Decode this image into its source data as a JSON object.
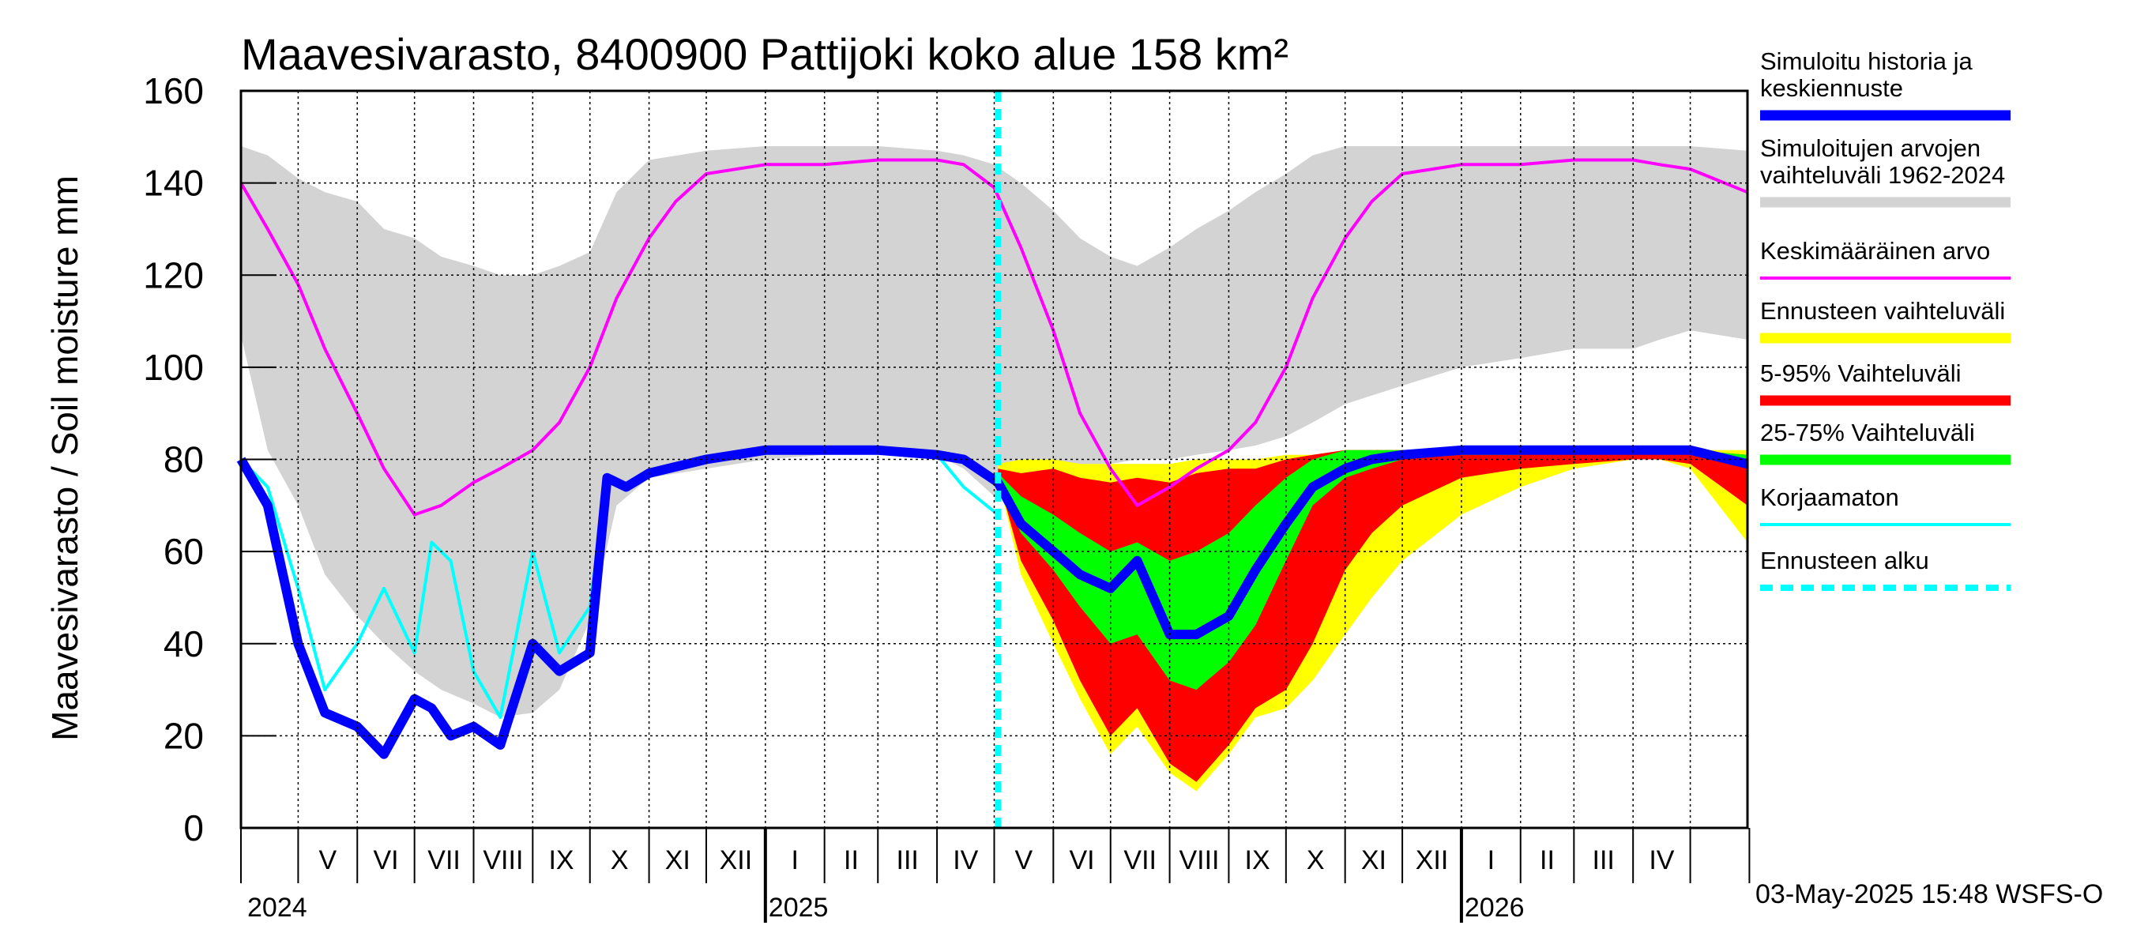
{
  "chart_data": {
    "type": "area",
    "title": "Maavesivarasto, 8400900 Pattijoki koko alue 158 km²",
    "ylabel": "Maavesivarasto / Soil moisture   mm",
    "ylim": [
      0,
      160
    ],
    "yticks": [
      "0",
      "20",
      "40",
      "60",
      "80",
      "100",
      "120",
      "140",
      "160"
    ],
    "grid": true,
    "legend_position": "right",
    "x_start": "2024-04-01",
    "x_end": "2026-05-31",
    "forecast_start": "2025-05-03",
    "months": [
      "V",
      "VI",
      "VII",
      "VIII",
      "IX",
      "X",
      "XI",
      "XII",
      "I",
      "II",
      "III",
      "IV",
      "V",
      "VI",
      "VII",
      "VIII",
      "IX",
      "X",
      "XI",
      "XII",
      "I",
      "II",
      "III",
      "IV"
    ],
    "years": [
      "2024",
      "2025",
      "2026"
    ],
    "timestamp": "03-May-2025 15:48 WSFS-O",
    "legend": [
      {
        "label_lines": [
          "Simuloitu historia ja",
          "keskiennuste"
        ],
        "color": "#0000ff",
        "style": "thick"
      },
      {
        "label_lines": [
          "Simuloitujen arvojen",
          "vaihteluväli 1962-2024"
        ],
        "color": "#d3d3d3",
        "style": "thick"
      },
      {
        "label_lines": [
          "Keskimääräinen arvo"
        ],
        "color": "#ff00ff",
        "style": "thin"
      },
      {
        "label_lines": [
          "Ennusteen vaihteluväli"
        ],
        "color": "#ffff00",
        "style": "thick"
      },
      {
        "label_lines": [
          "5-95% Vaihteluväli"
        ],
        "color": "#ff0000",
        "style": "thick"
      },
      {
        "label_lines": [
          "25-75% Vaihteluväli"
        ],
        "color": "#00ff00",
        "style": "thick"
      },
      {
        "label_lines": [
          "Korjaamaton"
        ],
        "color": "#00ffff",
        "style": "thin"
      },
      {
        "label_lines": [
          "Ennusteen alku"
        ],
        "color": "#00ffff",
        "style": "dashed"
      }
    ],
    "series": [
      {
        "name": "Simuloitujen arvojen vaihteluväli 1962-2024",
        "type": "band",
        "color": "#d3d3d3",
        "x": [
          "2024-04-01",
          "2024-04-15",
          "2024-05-01",
          "2024-05-15",
          "2024-06-01",
          "2024-06-15",
          "2024-07-01",
          "2024-07-15",
          "2024-08-01",
          "2024-08-15",
          "2024-09-01",
          "2024-09-15",
          "2024-10-01",
          "2024-10-15",
          "2024-11-01",
          "2024-12-01",
          "2025-01-01",
          "2025-02-01",
          "2025-03-01",
          "2025-04-01",
          "2025-04-15",
          "2025-05-01",
          "2025-05-15",
          "2025-06-01",
          "2025-06-15",
          "2025-07-01",
          "2025-07-15",
          "2025-08-01",
          "2025-08-15",
          "2025-09-01",
          "2025-09-15",
          "2025-10-01",
          "2025-10-15",
          "2025-11-01",
          "2025-12-01",
          "2026-01-01",
          "2026-02-01",
          "2026-03-01",
          "2026-04-01",
          "2026-04-15",
          "2026-05-01",
          "2026-05-31"
        ],
        "low": [
          107,
          82,
          70,
          55,
          46,
          40,
          34,
          30,
          27,
          24,
          25,
          30,
          45,
          70,
          76,
          78,
          80,
          81,
          81,
          81,
          78,
          72,
          75,
          78,
          79,
          79,
          80,
          80,
          81,
          82,
          83,
          85,
          88,
          92,
          96,
          100,
          102,
          104,
          104,
          106,
          108,
          106
        ],
        "high": [
          148,
          146,
          141,
          138,
          136,
          130,
          128,
          124,
          122,
          120,
          120,
          122,
          125,
          138,
          145,
          147,
          148,
          148,
          148,
          147,
          146,
          144,
          140,
          134,
          128,
          124,
          122,
          126,
          130,
          134,
          138,
          142,
          146,
          148,
          148,
          148,
          148,
          148,
          148,
          148,
          148,
          147
        ]
      },
      {
        "name": "Ennusteen vaihteluväli",
        "type": "band",
        "color": "#ffff00",
        "x": [
          "2025-05-03",
          "2025-05-15",
          "2025-06-01",
          "2025-06-15",
          "2025-07-01",
          "2025-07-15",
          "2025-08-01",
          "2025-08-15",
          "2025-09-01",
          "2025-09-15",
          "2025-10-01",
          "2025-10-15",
          "2025-11-01",
          "2025-11-15",
          "2025-12-01",
          "2026-01-01",
          "2026-02-01",
          "2026-03-01",
          "2026-04-01",
          "2026-04-15",
          "2026-05-01",
          "2026-05-31"
        ],
        "low": [
          76,
          55,
          40,
          28,
          16,
          22,
          12,
          8,
          16,
          24,
          26,
          32,
          42,
          50,
          58,
          68,
          74,
          78,
          80,
          80,
          78,
          62
        ],
        "high": [
          79,
          80,
          80,
          79,
          79,
          79,
          79,
          80,
          80,
          80,
          81,
          81,
          82,
          82,
          82,
          82,
          82,
          82,
          82,
          82,
          82,
          82
        ]
      },
      {
        "name": "5-95% Vaihteluväli",
        "type": "band",
        "color": "#ff0000",
        "x": [
          "2025-05-03",
          "2025-05-15",
          "2025-06-01",
          "2025-06-15",
          "2025-07-01",
          "2025-07-15",
          "2025-08-01",
          "2025-08-15",
          "2025-09-01",
          "2025-09-15",
          "2025-10-01",
          "2025-10-15",
          "2025-11-01",
          "2025-11-15",
          "2025-12-01",
          "2026-01-01",
          "2026-02-01",
          "2026-03-01",
          "2026-04-01",
          "2026-04-15",
          "2026-05-01",
          "2026-05-31"
        ],
        "low": [
          76,
          58,
          45,
          32,
          20,
          26,
          14,
          10,
          18,
          26,
          30,
          40,
          56,
          64,
          70,
          76,
          78,
          79,
          80,
          80,
          79,
          70
        ],
        "high": [
          78,
          77,
          78,
          76,
          75,
          76,
          75,
          77,
          78,
          78,
          80,
          81,
          82,
          82,
          82,
          82,
          82,
          82,
          82,
          82,
          82,
          81
        ]
      },
      {
        "name": "25-75% Vaihteluväli",
        "type": "band",
        "color": "#00ff00",
        "x": [
          "2025-05-03",
          "2025-05-15",
          "2025-06-01",
          "2025-06-15",
          "2025-07-01",
          "2025-07-15",
          "2025-08-01",
          "2025-08-15",
          "2025-09-01",
          "2025-09-15",
          "2025-10-01",
          "2025-10-15",
          "2025-11-01",
          "2025-11-15",
          "2025-12-01",
          "2026-01-01",
          "2026-02-01",
          "2026-03-01",
          "2026-04-01",
          "2026-04-15",
          "2026-05-01",
          "2026-05-31"
        ],
        "low": [
          74,
          64,
          56,
          48,
          40,
          42,
          32,
          30,
          36,
          44,
          58,
          70,
          76,
          78,
          80,
          81,
          81,
          82,
          82,
          82,
          82,
          79
        ],
        "high": [
          77,
          72,
          68,
          64,
          60,
          62,
          58,
          60,
          64,
          70,
          76,
          80,
          82,
          82,
          82,
          82,
          82,
          82,
          82,
          82,
          82,
          81
        ]
      },
      {
        "name": "Keskimääräinen arvo",
        "type": "line",
        "color": "#ff00ff",
        "x": [
          "2024-04-01",
          "2024-04-15",
          "2024-05-01",
          "2024-05-15",
          "2024-06-01",
          "2024-06-15",
          "2024-07-01",
          "2024-07-15",
          "2024-08-01",
          "2024-08-15",
          "2024-09-01",
          "2024-09-15",
          "2024-10-01",
          "2024-10-15",
          "2024-11-01",
          "2024-11-15",
          "2024-12-01",
          "2025-01-01",
          "2025-02-01",
          "2025-03-01",
          "2025-04-01",
          "2025-04-15",
          "2025-05-01",
          "2025-05-15",
          "2025-06-01",
          "2025-06-15",
          "2025-07-01",
          "2025-07-15",
          "2025-08-01",
          "2025-08-15",
          "2025-09-01",
          "2025-09-15",
          "2025-10-01",
          "2025-10-15",
          "2025-11-01",
          "2025-11-15",
          "2025-12-01",
          "2026-01-01",
          "2026-02-01",
          "2026-03-01",
          "2026-04-01",
          "2026-04-15",
          "2026-05-01",
          "2026-05-31"
        ],
        "y": [
          140,
          130,
          118,
          104,
          90,
          78,
          68,
          70,
          75,
          78,
          82,
          88,
          100,
          115,
          128,
          136,
          142,
          144,
          144,
          145,
          145,
          144,
          139,
          126,
          108,
          90,
          78,
          70,
          74,
          78,
          82,
          88,
          100,
          115,
          128,
          136,
          142,
          144,
          144,
          145,
          145,
          144,
          143,
          138
        ]
      },
      {
        "name": "Korjaamaton",
        "type": "line",
        "color": "#00ffff",
        "x": [
          "2024-04-01",
          "2024-04-15",
          "2024-05-01",
          "2024-05-15",
          "2024-06-01",
          "2024-06-15",
          "2024-07-01",
          "2024-07-10",
          "2024-07-20",
          "2024-08-01",
          "2024-08-15",
          "2024-09-01",
          "2024-09-15",
          "2024-10-01",
          "2024-10-10",
          "2024-10-20",
          "2024-11-01",
          "2024-12-01",
          "2025-01-01",
          "2025-02-01",
          "2025-03-01",
          "2025-04-01",
          "2025-04-15",
          "2025-05-03"
        ],
        "y": [
          80,
          74,
          52,
          30,
          40,
          52,
          38,
          62,
          58,
          34,
          24,
          60,
          38,
          48,
          76,
          74,
          77,
          80,
          82,
          82,
          82,
          81,
          74,
          68
        ]
      },
      {
        "name": "Simuloitu historia ja keskiennuste",
        "type": "line",
        "color": "#0000ff",
        "x": [
          "2024-04-01",
          "2024-04-15",
          "2024-05-01",
          "2024-05-15",
          "2024-06-01",
          "2024-06-15",
          "2024-07-01",
          "2024-07-10",
          "2024-07-20",
          "2024-08-01",
          "2024-08-15",
          "2024-09-01",
          "2024-09-15",
          "2024-10-01",
          "2024-10-10",
          "2024-10-20",
          "2024-11-01",
          "2024-12-01",
          "2025-01-01",
          "2025-02-01",
          "2025-03-01",
          "2025-04-01",
          "2025-04-15",
          "2025-05-03",
          "2025-05-15",
          "2025-06-01",
          "2025-06-15",
          "2025-07-01",
          "2025-07-15",
          "2025-08-01",
          "2025-08-15",
          "2025-09-01",
          "2025-09-15",
          "2025-10-01",
          "2025-10-15",
          "2025-11-01",
          "2025-11-15",
          "2025-12-01",
          "2026-01-01",
          "2026-02-01",
          "2026-03-01",
          "2026-04-01",
          "2026-04-15",
          "2026-05-01",
          "2026-05-31"
        ],
        "y": [
          80,
          70,
          40,
          25,
          22,
          16,
          28,
          26,
          20,
          22,
          18,
          40,
          34,
          38,
          76,
          74,
          77,
          80,
          82,
          82,
          82,
          81,
          80,
          75,
          66,
          60,
          55,
          52,
          58,
          42,
          42,
          46,
          56,
          66,
          74,
          78,
          80,
          81,
          82,
          82,
          82,
          82,
          82,
          82,
          79
        ]
      }
    ]
  }
}
